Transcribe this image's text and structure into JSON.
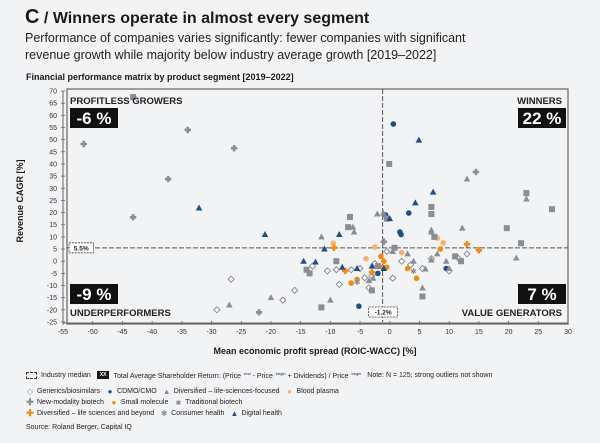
{
  "header": {
    "letter": "C",
    "slash": "/",
    "title": "Winners operate in almost every segment",
    "subtitle_line1": "Performance of companies varies significantly: fewer companies with significant",
    "subtitle_line2": "revenue growth while majority below industry average growth [2019–2022]"
  },
  "chart_data": {
    "type": "scatter",
    "title": "Financial performance matrix by product segment [2019–2022]",
    "xlabel": "Mean economic profit spread (ROIC-WACC) [%]",
    "ylabel": "Revenue CAGR [%]",
    "xlim": [
      -55,
      30
    ],
    "ylim": [
      -25,
      70
    ],
    "xticks": [
      -55,
      -50,
      -45,
      -40,
      -35,
      -30,
      -25,
      -20,
      -15,
      -10,
      -5,
      0,
      5,
      10,
      15,
      20,
      25,
      30
    ],
    "yticks": [
      70,
      65,
      60,
      55,
      50,
      45,
      40,
      35,
      30,
      25,
      20,
      15,
      10,
      5,
      0,
      -5,
      -10,
      -15,
      -20,
      -25
    ],
    "grid": false,
    "median_x": -1.2,
    "median_y": 5.5,
    "median_x_label": "-1.2%",
    "median_y_label": "5.5%",
    "quadrants": [
      {
        "name": "PROFITLESS GROWERS",
        "value": "-6%",
        "position": "top-left"
      },
      {
        "name": "WINNERS",
        "value": "22%",
        "position": "top-right"
      },
      {
        "name": "UNDERPERFORMERS",
        "value": "-9%",
        "position": "bottom-left"
      },
      {
        "name": "VALUE GENERATORS",
        "value": "7%",
        "position": "bottom-right"
      }
    ],
    "series": [
      {
        "name": "Generics/biosimilars",
        "marker": "diamond-open",
        "color": "#8a8d93",
        "points": [
          [
            -26.7,
            -7.4
          ],
          [
            -29.1,
            -20
          ],
          [
            -13,
            -2
          ],
          [
            -10.5,
            -4
          ],
          [
            -9,
            -3.5
          ],
          [
            -16,
            -12
          ],
          [
            -8.5,
            -9.5
          ],
          [
            -18,
            -16
          ],
          [
            -5,
            -3
          ],
          [
            -3,
            -6
          ],
          [
            -2.5,
            -1
          ],
          [
            2,
            0
          ],
          [
            3.5,
            -1.5
          ],
          [
            -6.5,
            -3.5
          ],
          [
            5.5,
            -3
          ],
          [
            10,
            -4
          ],
          [
            7,
            1
          ],
          [
            11.5,
            1.3
          ],
          [
            13,
            3
          ],
          [
            -4.2,
            -6.8
          ],
          [
            -3.5,
            -11
          ],
          [
            0.5,
            -7
          ],
          [
            -0.5,
            4
          ]
        ]
      },
      {
        "name": "CDMO/CMO",
        "marker": "circle",
        "color": "#1f4e8c",
        "points": [
          [
            0.6,
            56.4
          ],
          [
            3.2,
            19.8
          ],
          [
            -0.7,
            19
          ],
          [
            1.7,
            12
          ],
          [
            1.9,
            11
          ],
          [
            -5.2,
            -18.5
          ],
          [
            9.5,
            -3
          ],
          [
            -2,
            -5
          ]
        ]
      },
      {
        "name": "Diversified – life-sciences-focused",
        "marker": "triangle",
        "color": "#8a8d93",
        "points": [
          [
            13,
            33.8
          ],
          [
            23,
            25.6
          ],
          [
            12.2,
            13.6
          ],
          [
            21.3,
            1.3
          ],
          [
            -2.1,
            19.4
          ],
          [
            -1.1,
            19.8
          ],
          [
            -6.2,
            14
          ],
          [
            -6,
            12
          ],
          [
            7,
            12.8
          ],
          [
            7,
            12
          ],
          [
            -27,
            -18
          ],
          [
            -10,
            -16
          ],
          [
            -20,
            -15
          ],
          [
            0.5,
            4
          ],
          [
            3,
            3
          ],
          [
            4,
            0
          ],
          [
            7,
            0.5
          ],
          [
            9.5,
            0
          ],
          [
            10,
            -3
          ],
          [
            6,
            -3.2
          ],
          [
            -2.8,
            -7
          ],
          [
            -3.5,
            -8
          ],
          [
            5.5,
            -11
          ],
          [
            -11.5,
            10
          ],
          [
            8,
            3
          ]
        ]
      },
      {
        "name": "Blood plasma",
        "marker": "circle",
        "color": "#f7b36b",
        "points": [
          [
            -9.5,
            7.4
          ],
          [
            2,
            3.5
          ],
          [
            8,
            9.5
          ],
          [
            9,
            7.5
          ],
          [
            -2.5,
            5.8
          ],
          [
            -4,
            1
          ]
        ]
      },
      {
        "name": "New-modality biotech",
        "marker": "plus-diamond",
        "color": "#8a8d93",
        "points": [
          [
            -51.5,
            48.2
          ],
          [
            -34,
            54
          ],
          [
            -26.2,
            46.5
          ],
          [
            -37.3,
            33.8
          ],
          [
            -43.2,
            18.1
          ],
          [
            14.5,
            36.7
          ],
          [
            -22,
            -21
          ],
          [
            -1,
            8
          ]
        ]
      },
      {
        "name": "Small molecule",
        "marker": "circle",
        "color": "#f28a16",
        "points": [
          [
            -1.5,
            2
          ],
          [
            -1,
            0
          ],
          [
            -1.2,
            -2.5
          ],
          [
            -0.5,
            -2.5
          ],
          [
            -6.5,
            -9
          ],
          [
            -5.5,
            -7.5
          ],
          [
            3,
            -3
          ],
          [
            4.5,
            -7
          ],
          [
            8.5,
            5
          ],
          [
            -2,
            -2
          ]
        ]
      },
      {
        "name": "Traditional biotech",
        "marker": "square",
        "color": "#8a8d93",
        "points": [
          [
            -43.2,
            67.5
          ],
          [
            -0.1,
            40
          ],
          [
            7,
            22.3
          ],
          [
            7,
            19.4
          ],
          [
            -6.7,
            18.2
          ],
          [
            -0.5,
            17.5
          ],
          [
            23,
            28
          ],
          [
            27.3,
            21.4
          ],
          [
            19.7,
            13.6
          ],
          [
            22.1,
            7.4
          ],
          [
            -13.5,
            -5
          ],
          [
            -11.5,
            -19
          ],
          [
            -7,
            14
          ],
          [
            5.5,
            -14.5
          ],
          [
            0.8,
            5.5
          ],
          [
            11,
            2
          ],
          [
            12,
            0
          ],
          [
            -2,
            -2
          ],
          [
            7.5,
            10
          ],
          [
            -14,
            -3.5
          ],
          [
            -3,
            -12
          ],
          [
            -9,
            0
          ]
        ]
      },
      {
        "name": "Diversified – life sciences and beyond",
        "marker": "plus-diamond",
        "color": "#f28a16",
        "points": [
          [
            -9.4,
            5.5
          ],
          [
            13,
            7
          ],
          [
            15,
            4.5
          ],
          [
            -7.5,
            -4
          ],
          [
            -3,
            -4.5
          ]
        ]
      },
      {
        "name": "Consumer health",
        "marker": "asterisk",
        "color": "#8a8d93",
        "points": [
          [
            -5.5,
            -8.5
          ],
          [
            4,
            -4
          ]
        ]
      },
      {
        "name": "Digital health",
        "marker": "triangle",
        "color": "#1f4e8c",
        "points": [
          [
            4.9,
            49.8
          ],
          [
            7.3,
            28.4
          ],
          [
            4.3,
            24
          ],
          [
            -32.1,
            21.9
          ],
          [
            -21,
            11
          ],
          [
            -8.5,
            11
          ],
          [
            0,
            17.5
          ],
          [
            -11,
            5
          ],
          [
            -12.5,
            -0.3
          ],
          [
            -14.5,
            0
          ],
          [
            -5.5,
            -3
          ],
          [
            -3,
            -2
          ],
          [
            -8,
            -2.5
          ],
          [
            -1,
            -3
          ]
        ]
      }
    ]
  },
  "legend": {
    "industry_median": "Industry median",
    "tsr_badge": "XX",
    "tsr_label_a": "Total Average Shareholder Return: (Price",
    "tsr_sup_end": "end",
    "tsr_label_b": " - Price",
    "tsr_sup_begin": "begin",
    "tsr_label_c": " + Dividends) / Price",
    "tsr_sup_begin2": "begin",
    "note": "Note: N = 125; strong outliers not shown"
  },
  "source": "Source: Roland Berger, Capital IQ"
}
